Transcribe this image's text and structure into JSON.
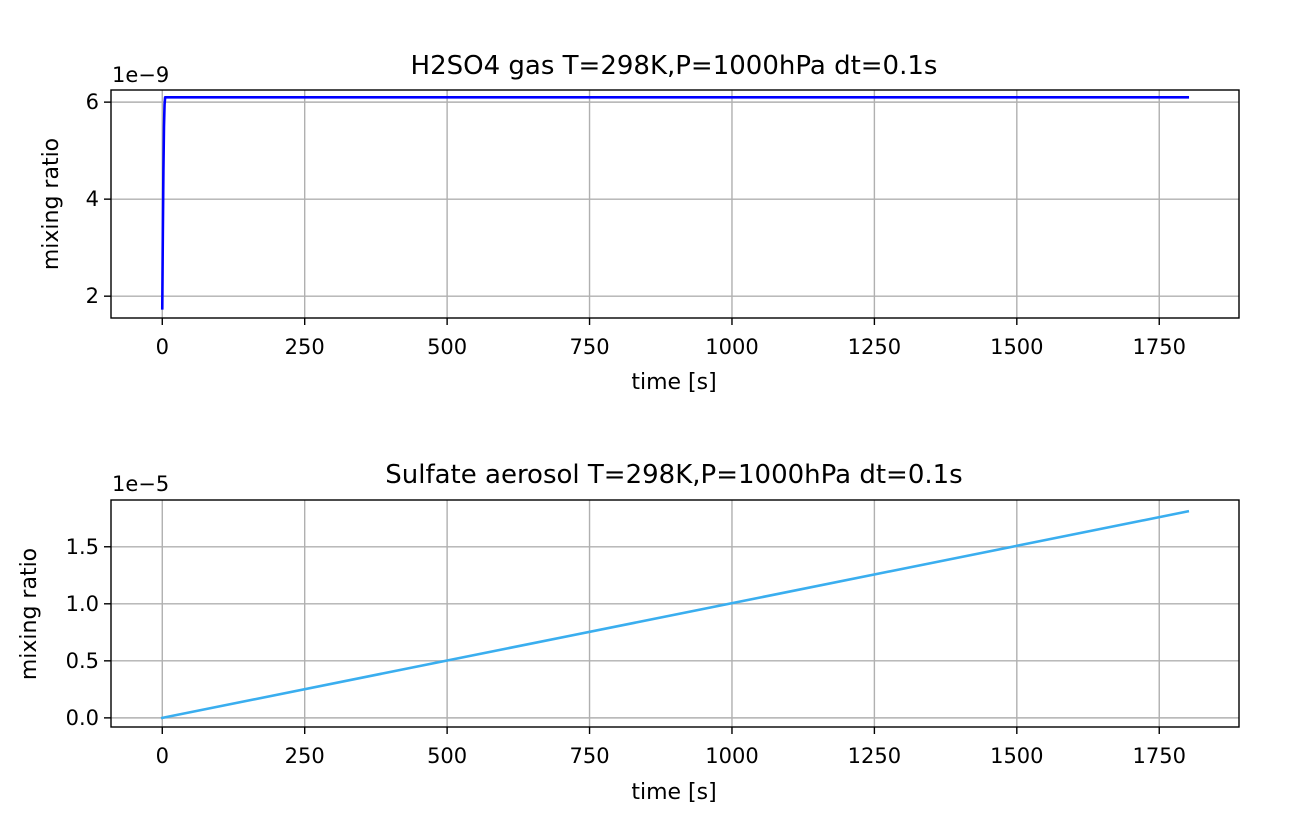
{
  "chart_data": [
    {
      "type": "line",
      "title": "H2SO4 gas T=298K,P=1000hPa dt=0.1s",
      "xlabel": "time [s]",
      "ylabel": "mixing ratio",
      "y_offset_label": "1e−9",
      "xlim": [
        -90,
        1890
      ],
      "ylim": [
        1.55,
        6.25
      ],
      "xticks": [
        0,
        250,
        500,
        750,
        1000,
        1250,
        1500,
        1750
      ],
      "xtick_labels": [
        "0",
        "250",
        "500",
        "750",
        "1000",
        "1250",
        "1500",
        "1750"
      ],
      "yticks": [
        2,
        4,
        6
      ],
      "ytick_labels": [
        "2",
        "4",
        "6"
      ],
      "grid": true,
      "series": [
        {
          "color": "#0000ff",
          "x": [
            0,
            1,
            2,
            3,
            4,
            5,
            1800
          ],
          "y": [
            1.75,
            3.3,
            4.6,
            5.5,
            5.95,
            6.1,
            6.1
          ]
        }
      ]
    },
    {
      "type": "line",
      "title": "Sulfate aerosol T=298K,P=1000hPa dt=0.1s",
      "xlabel": "time [s]",
      "ylabel": "mixing ratio",
      "y_offset_label": "1e−5",
      "xlim": [
        -90,
        1890
      ],
      "ylim": [
        -0.08,
        1.91
      ],
      "xticks": [
        0,
        250,
        500,
        750,
        1000,
        1250,
        1500,
        1750
      ],
      "xtick_labels": [
        "0",
        "250",
        "500",
        "750",
        "1000",
        "1250",
        "1500",
        "1750"
      ],
      "yticks": [
        0.0,
        0.5,
        1.0,
        1.5
      ],
      "ytick_labels": [
        "0.0",
        "0.5",
        "1.0",
        "1.5"
      ],
      "grid": true,
      "series": [
        {
          "color": "#3aaeef",
          "x": [
            0,
            1800
          ],
          "y": [
            0.0,
            1.81
          ]
        }
      ]
    }
  ]
}
